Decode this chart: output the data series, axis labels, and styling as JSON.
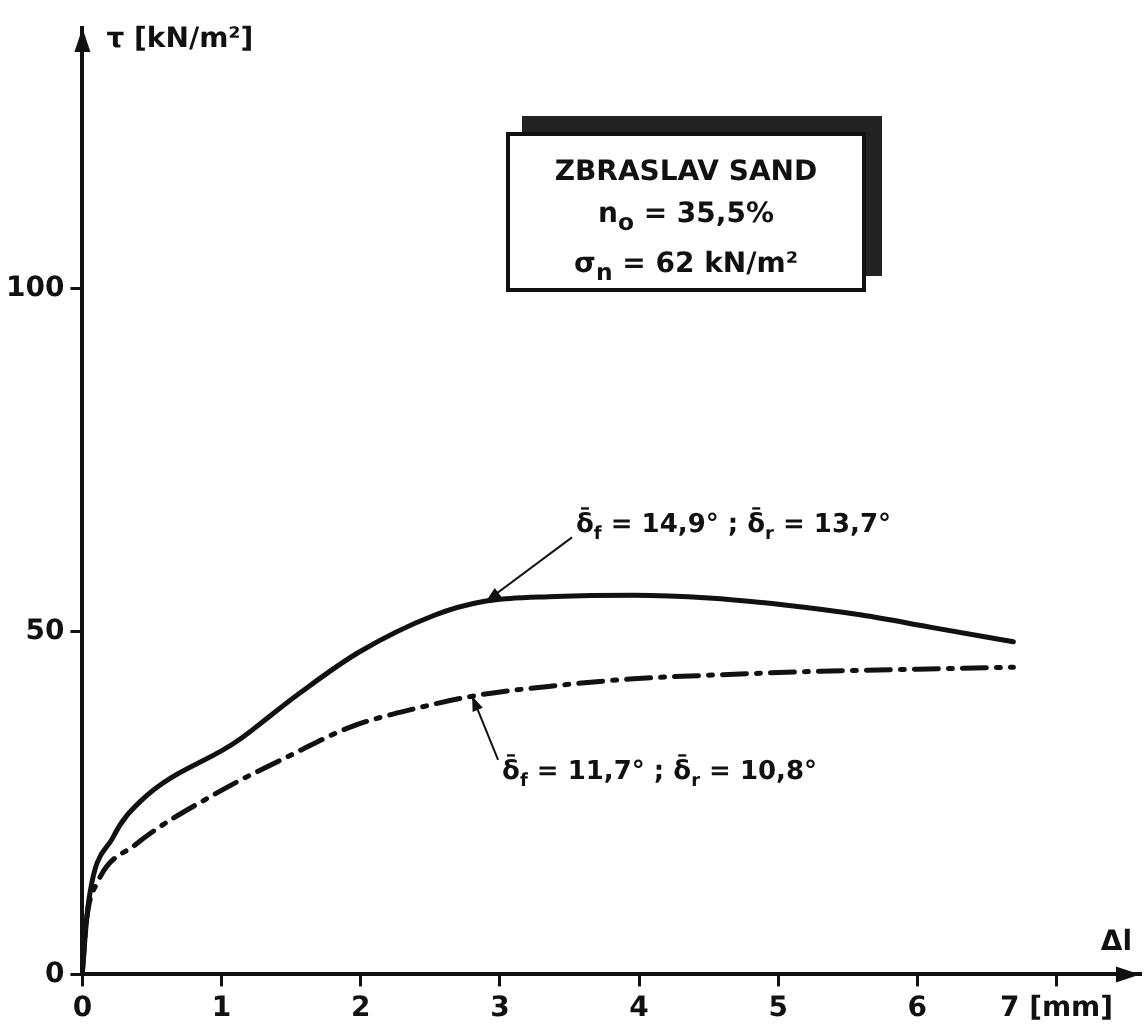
{
  "chart_data": {
    "type": "line",
    "title": "ZBRASLAV SAND",
    "xlabel": "Δl",
    "ylabel": "τ [kN/m²]",
    "annotations": [
      "n$_{o}$ = 35,5%",
      "σ$_{n}$ = 62 kN/m²",
      {
        "text": "δ̄$_{f}$ = 14,9° ; δ̄$_{r}$ = 13,7°",
        "x": 2.9,
        "y": 54.4
      },
      {
        "text": "δ̄$_{f}$ = 11,7° ; δ̄$_{r}$ = 10,8°",
        "x": 2.8,
        "y": 40.6
      }
    ],
    "series": [
      {
        "color": "#111111",
        "line_style": "solid",
        "x": [
          0,
          0.04,
          0.22,
          0.42,
          1.11,
          1.56,
          1.98,
          2.52,
          2.89,
          3.4,
          3.96,
          4.5,
          5.03,
          5.6,
          6.1,
          6.69
        ],
        "values": [
          0.5,
          10,
          20,
          25.3,
          34,
          41,
          46.9,
          52.3,
          54.4,
          55.1,
          55.3,
          54.9,
          53.9,
          52.4,
          50.6,
          48.5
        ]
      },
      {
        "color": "#111111",
        "line_style": "dashed",
        "x": [
          0,
          0.03,
          0.11,
          0.38,
          0.97,
          1.5,
          1.93,
          2.4,
          2.84,
          3.4,
          3.96,
          4.6,
          5.3,
          6.0,
          6.69
        ],
        "values": [
          0.5,
          8,
          13.5,
          18.9,
          26.5,
          32,
          36.1,
          38.8,
          40.7,
          42.1,
          43.1,
          43.7,
          44.2,
          44.5,
          44.8
        ]
      }
    ],
    "xlim": [
      0,
      7.6
    ],
    "ylim": [
      0,
      138
    ],
    "xticks": [
      0,
      1,
      2,
      3,
      4,
      5,
      6,
      {
        "value": 7,
        "label": "7 [mm]"
      }
    ],
    "yticks": [
      0,
      50,
      100
    ],
    "grid": false,
    "legend": false,
    "marker": "none"
  }
}
